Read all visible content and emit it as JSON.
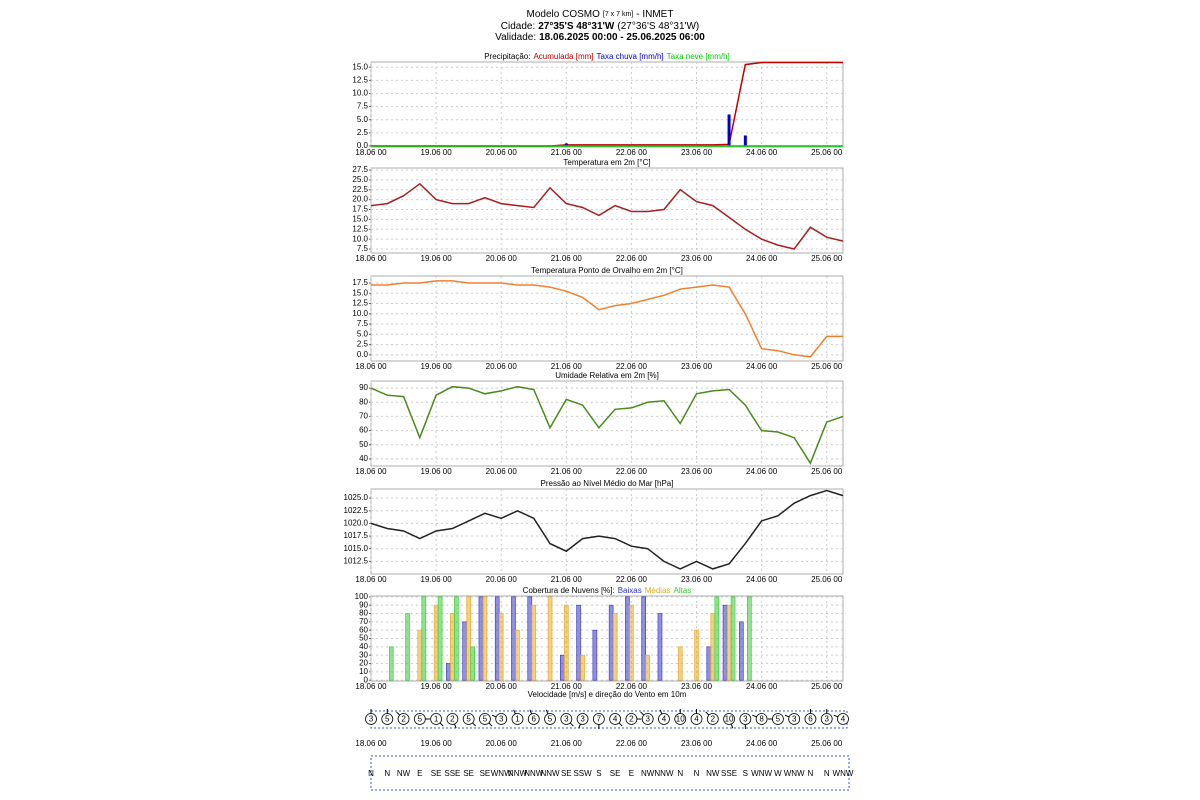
{
  "header": {
    "model": "Modelo COSMO",
    "resolution": "[7 x 7 km]",
    "source": "- INMET",
    "city_label": "Cidade:",
    "city": "27°35'S 48°31'W",
    "city_alt": "(27°36'S 48°31'W)",
    "validity_label": "Validade:",
    "validity": "18.06.2025 00:00 - 25.06.2025 06:00"
  },
  "chart_data": [
    {
      "type": "line",
      "title": "Precipitação:",
      "legend": "title",
      "x": [
        "18.06 00",
        "18.06 06",
        "18.06 12",
        "18.06 18",
        "19.06 00",
        "19.06 06",
        "19.06 12",
        "19.06 18",
        "20.06 00",
        "20.06 06",
        "20.06 12",
        "20.06 18",
        "21.06 00",
        "21.06 06",
        "21.06 12",
        "21.06 18",
        "22.06 00",
        "22.06 06",
        "22.06 12",
        "22.06 18",
        "23.06 00",
        "23.06 06",
        "23.06 12",
        "23.06 18",
        "24.06 00",
        "24.06 06",
        "24.06 12",
        "24.06 18",
        "25.06 00",
        "25.06 06"
      ],
      "xlim": [
        "18.06 00",
        "25.06 06"
      ],
      "xticks": [
        "18.06 00",
        "19.06 00",
        "20.06 00",
        "21.06 00",
        "22.06 00",
        "23.06 00",
        "24.06 00",
        "25.06 00"
      ],
      "ylim": [
        -0.2,
        16
      ],
      "yticks": [
        {
          "value": 0,
          "label": "0.0"
        },
        {
          "value": 2.5,
          "label": "2.5"
        },
        {
          "value": 5,
          "label": "5.0"
        },
        {
          "value": 7.5,
          "label": "7.5"
        },
        {
          "value": 10,
          "label": "10.0"
        },
        {
          "value": 12.5,
          "label": "12.5"
        },
        {
          "value": 15,
          "label": "15.0"
        }
      ],
      "grid": true,
      "series": [
        {
          "name": "Acumulada [mm]",
          "color": "#c00000",
          "type": "line",
          "values": [
            0,
            0,
            0,
            0,
            0,
            0,
            0,
            0,
            0,
            0,
            0,
            0,
            0.2,
            0.2,
            0.2,
            0.2,
            0.2,
            0.2,
            0.2,
            0.2,
            0.2,
            0.2,
            0.3,
            15.5,
            15.9,
            15.9,
            15.9,
            15.9,
            15.9,
            15.9
          ]
        },
        {
          "name": "Taxa chuva [mm/h]",
          "color": "#0000cc",
          "type": "bar",
          "values": [
            0,
            0,
            0,
            0,
            0,
            0,
            0,
            0,
            0,
            0,
            0,
            0,
            0.5,
            0,
            0,
            0,
            0,
            0,
            0,
            0,
            0,
            0,
            6,
            2,
            0,
            0,
            0,
            0,
            0,
            0
          ]
        },
        {
          "name": "Taxa neve [mm/h]",
          "color": "#00cc00",
          "type": "line",
          "values": [
            0,
            0,
            0,
            0,
            0,
            0,
            0,
            0,
            0,
            0,
            0,
            0,
            0,
            0,
            0,
            0,
            0,
            0,
            0,
            0,
            0,
            0,
            0,
            0,
            0,
            0,
            0,
            0,
            0,
            0
          ]
        }
      ]
    },
    {
      "type": "line",
      "title": "Temperatura em 2m [°C]",
      "x": [
        "18.06 00",
        "18.06 06",
        "18.06 12",
        "18.06 18",
        "19.06 00",
        "19.06 06",
        "19.06 12",
        "19.06 18",
        "20.06 00",
        "20.06 06",
        "20.06 12",
        "20.06 18",
        "21.06 00",
        "21.06 06",
        "21.06 12",
        "21.06 18",
        "22.06 00",
        "22.06 06",
        "22.06 12",
        "22.06 18",
        "23.06 00",
        "23.06 06",
        "23.06 12",
        "23.06 18",
        "24.06 00",
        "24.06 06",
        "24.06 12",
        "24.06 18",
        "25.06 00",
        "25.06 06"
      ],
      "xlim": [
        "18.06 00",
        "25.06 06"
      ],
      "xticks": [
        "18.06 00",
        "19.06 00",
        "20.06 00",
        "21.06 00",
        "22.06 00",
        "23.06 00",
        "24.06 00",
        "25.06 00"
      ],
      "ylim": [
        6.5,
        28
      ],
      "yticks": [
        7.5,
        {
          "value": 10,
          "label": "10.0"
        },
        12.5,
        {
          "value": 15,
          "label": "15.0"
        },
        17.5,
        {
          "value": 20,
          "label": "20.0"
        },
        22.5,
        {
          "value": 25,
          "label": "25.0"
        },
        27.5
      ],
      "grid": true,
      "color": "#a52020",
      "values": [
        18.5,
        19,
        21,
        24,
        20,
        19,
        19,
        20.5,
        19,
        18.5,
        18,
        23,
        19,
        18,
        16,
        18.5,
        17,
        17,
        17.5,
        22.5,
        19.5,
        18.5,
        15.5,
        12.5,
        10,
        8.5,
        7.5,
        13,
        10.5,
        9.5
      ]
    },
    {
      "type": "line",
      "title": "Temperatura Ponto de Orvalho em 2m [°C]",
      "x": [
        "18.06 00",
        "18.06 06",
        "18.06 12",
        "18.06 18",
        "19.06 00",
        "19.06 06",
        "19.06 12",
        "19.06 18",
        "20.06 00",
        "20.06 06",
        "20.06 12",
        "20.06 18",
        "21.06 00",
        "21.06 06",
        "21.06 12",
        "21.06 18",
        "22.06 00",
        "22.06 06",
        "22.06 12",
        "22.06 18",
        "23.06 00",
        "23.06 06",
        "23.06 12",
        "23.06 18",
        "24.06 00",
        "24.06 06",
        "24.06 12",
        "24.06 18",
        "25.06 00",
        "25.06 06"
      ],
      "xlim": [
        "18.06 00",
        "25.06 06"
      ],
      "xticks": [
        "18.06 00",
        "19.06 00",
        "20.06 00",
        "21.06 00",
        "22.06 00",
        "23.06 00",
        "24.06 00",
        "25.06 00"
      ],
      "ylim": [
        -1.5,
        19.2
      ],
      "yticks": [
        {
          "value": 0,
          "label": "0.0"
        },
        2.5,
        {
          "value": 5,
          "label": "5.0"
        },
        7.5,
        {
          "value": 10,
          "label": "10.0"
        },
        12.5,
        {
          "value": 15,
          "label": "15.0"
        },
        17.5
      ],
      "grid": true,
      "color": "#f08030",
      "values": [
        17,
        17,
        17.5,
        17.5,
        18,
        18,
        17.5,
        17.5,
        17.5,
        17,
        17,
        16.5,
        15.5,
        14,
        11,
        12,
        12.5,
        13.5,
        14.5,
        16,
        16.5,
        17,
        16.5,
        10,
        1.5,
        1,
        0,
        -0.5,
        4.5,
        4.5
      ]
    },
    {
      "type": "line",
      "title": "Umidade Relativa em 2m [%]",
      "x": [
        "18.06 00",
        "18.06 06",
        "18.06 12",
        "18.06 18",
        "19.06 00",
        "19.06 06",
        "19.06 12",
        "19.06 18",
        "20.06 00",
        "20.06 06",
        "20.06 12",
        "20.06 18",
        "21.06 00",
        "21.06 06",
        "21.06 12",
        "21.06 18",
        "22.06 00",
        "22.06 06",
        "22.06 12",
        "22.06 18",
        "23.06 00",
        "23.06 06",
        "23.06 12",
        "23.06 18",
        "24.06 00",
        "24.06 06",
        "24.06 12",
        "24.06 18",
        "25.06 00",
        "25.06 06"
      ],
      "xlim": [
        "18.06 00",
        "25.06 06"
      ],
      "xticks": [
        "18.06 00",
        "19.06 00",
        "20.06 00",
        "21.06 00",
        "22.06 00",
        "23.06 00",
        "24.06 00",
        "25.06 00"
      ],
      "ylim": [
        35,
        95
      ],
      "yticks": [
        40,
        50,
        60,
        70,
        80,
        90
      ],
      "grid": true,
      "color": "#4a8a1a",
      "values": [
        90,
        85,
        84,
        55,
        85,
        91,
        90,
        86,
        88,
        91,
        89,
        62,
        82,
        78,
        62,
        75,
        76,
        80,
        81,
        65,
        86,
        88,
        89,
        78,
        60,
        59,
        55,
        37,
        66,
        70
      ]
    },
    {
      "type": "line",
      "title": "Pressão ao Nível Médio do Mar [hPa]",
      "x": [
        "18.06 00",
        "18.06 06",
        "18.06 12",
        "18.06 18",
        "19.06 00",
        "19.06 06",
        "19.06 12",
        "19.06 18",
        "20.06 00",
        "20.06 06",
        "20.06 12",
        "20.06 18",
        "21.06 00",
        "21.06 06",
        "21.06 12",
        "21.06 18",
        "22.06 00",
        "22.06 06",
        "22.06 12",
        "22.06 18",
        "23.06 00",
        "23.06 06",
        "23.06 12",
        "23.06 18",
        "24.06 00",
        "24.06 06",
        "24.06 12",
        "24.06 18",
        "25.06 00",
        "25.06 06"
      ],
      "xlim": [
        "18.06 00",
        "25.06 06"
      ],
      "xticks": [
        "18.06 00",
        "19.06 00",
        "20.06 00",
        "21.06 00",
        "22.06 00",
        "23.06 00",
        "24.06 00",
        "25.06 00"
      ],
      "ylim": [
        1010,
        1026.8
      ],
      "yticks": [
        1012.5,
        {
          "value": 1015,
          "label": "1015.0"
        },
        1017.5,
        {
          "value": 1020,
          "label": "1020.0"
        },
        1022.5,
        {
          "value": 1025,
          "label": "1025.0"
        }
      ],
      "grid": true,
      "color": "#222222",
      "values": [
        1020,
        1019,
        1018.5,
        1017,
        1018.5,
        1019,
        1020.5,
        1022,
        1021,
        1022.5,
        1021,
        1016,
        1014.5,
        1017,
        1017.5,
        1017,
        1015.5,
        1015,
        1012.5,
        1011,
        1012.5,
        1011,
        1012,
        1016,
        1020.5,
        1021.5,
        1024,
        1025.5,
        1026.5,
        1025.5
      ]
    },
    {
      "type": "bar",
      "title": "Cobertura de Nuvens [%]:",
      "legend": "title",
      "x": [
        "18.06 00",
        "18.06 06",
        "18.06 12",
        "18.06 18",
        "19.06 00",
        "19.06 06",
        "19.06 12",
        "19.06 18",
        "20.06 00",
        "20.06 06",
        "20.06 12",
        "20.06 18",
        "21.06 00",
        "21.06 06",
        "21.06 12",
        "21.06 18",
        "22.06 00",
        "22.06 06",
        "22.06 12",
        "22.06 18",
        "23.06 00",
        "23.06 06",
        "23.06 12",
        "23.06 18",
        "24.06 00",
        "24.06 06",
        "24.06 12",
        "24.06 18",
        "25.06 00",
        "25.06 06"
      ],
      "xlim": [
        "18.06 00",
        "25.06 06"
      ],
      "xticks": [
        "18.06 00",
        "19.06 00",
        "20.06 00",
        "21.06 00",
        "22.06 00",
        "23.06 00",
        "24.06 00",
        "25.06 00"
      ],
      "ylim": [
        -1,
        101
      ],
      "yticks": [
        0,
        10,
        20,
        30,
        40,
        50,
        60,
        70,
        80,
        90,
        100
      ],
      "grid": true,
      "series": [
        {
          "name": "Baixas",
          "color": "#3333cc",
          "values": [
            0,
            0,
            0,
            0,
            0,
            20,
            70,
            100,
            100,
            100,
            100,
            0,
            30,
            90,
            60,
            90,
            100,
            100,
            80,
            0,
            0,
            40,
            90,
            70,
            0,
            0,
            0,
            0,
            0,
            0
          ]
        },
        {
          "name": "Médias",
          "color": "#e8a820",
          "values": [
            0,
            0,
            0,
            60,
            90,
            80,
            100,
            100,
            80,
            60,
            90,
            100,
            90,
            30,
            0,
            80,
            90,
            30,
            0,
            40,
            60,
            80,
            90,
            0,
            0,
            0,
            0,
            0,
            0,
            0
          ]
        },
        {
          "name": "Altas",
          "color": "#33cc33",
          "values": [
            0,
            40,
            80,
            100,
            100,
            100,
            40,
            0,
            0,
            0,
            0,
            0,
            0,
            0,
            0,
            0,
            0,
            0,
            0,
            0,
            0,
            100,
            100,
            100,
            0,
            0,
            0,
            0,
            0,
            0
          ]
        }
      ]
    },
    {
      "type": "wind",
      "title": "Velocidade [m/s] e direção do Vento em 10m",
      "x": [
        "18.06 00",
        "18.06 06",
        "18.06 12",
        "18.06 18",
        "19.06 00",
        "19.06 06",
        "19.06 12",
        "19.06 18",
        "20.06 00",
        "20.06 06",
        "20.06 12",
        "20.06 18",
        "21.06 00",
        "21.06 06",
        "21.06 12",
        "21.06 18",
        "22.06 00",
        "22.06 06",
        "22.06 12",
        "22.06 18",
        "23.06 00",
        "23.06 06",
        "23.06 12",
        "23.06 18",
        "24.06 00",
        "24.06 06",
        "24.06 12",
        "24.06 18",
        "25.06 00",
        "25.06 06"
      ],
      "xlim": [
        "18.06 00",
        "25.06 06"
      ],
      "xticks": [
        "18.06 00",
        "19.06 00",
        "20.06 00",
        "21.06 00",
        "22.06 00",
        "23.06 00",
        "24.06 00",
        "25.06 00"
      ],
      "values": [
        3,
        5,
        2,
        5,
        1,
        2,
        5,
        5,
        3,
        1,
        6,
        5,
        3,
        3,
        7,
        4,
        2,
        3,
        4,
        10,
        4,
        2,
        10,
        3,
        8,
        5,
        3,
        6,
        3,
        4
      ],
      "directions": [
        "N",
        "N",
        "NW",
        "E",
        "SE",
        "SSE",
        "SE",
        "SE",
        "WNW",
        "NNW",
        "NNW",
        "NNW",
        "SE",
        "SSW",
        "S",
        "SE",
        "E",
        "NW",
        "NNW",
        "N",
        "N",
        "NW",
        "SSE",
        "S",
        "WNW",
        "W",
        "WNW",
        "N",
        "N",
        "WNW"
      ]
    }
  ]
}
